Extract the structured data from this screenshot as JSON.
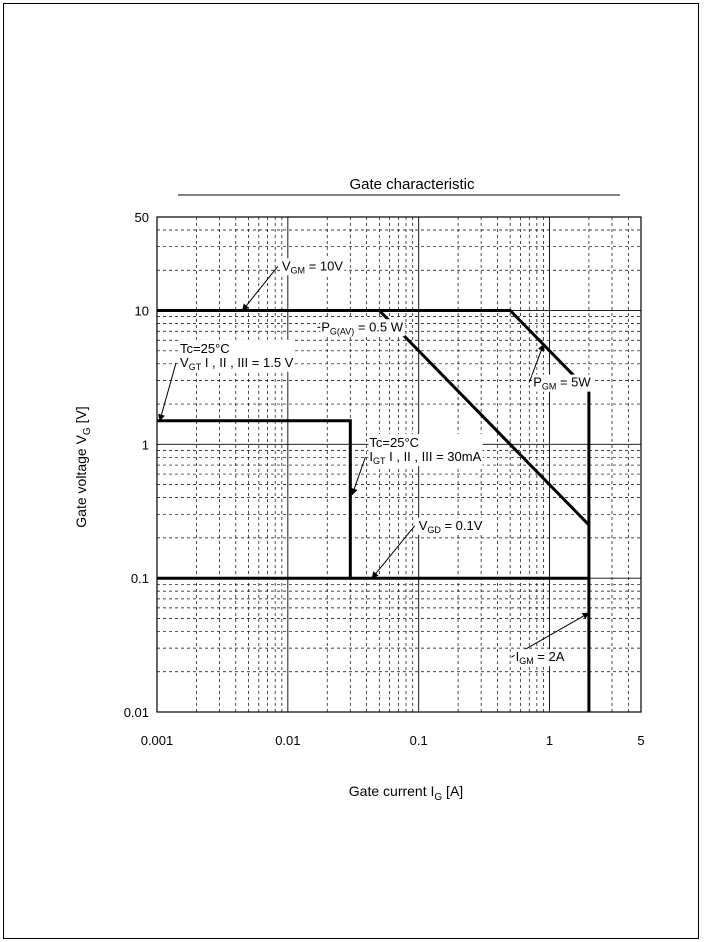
{
  "chart_data": {
    "type": "line",
    "title": "Gate characteristic",
    "xlabel": "Gate current I_G [A]",
    "ylabel": "Gate voltage V_G [V]",
    "x_scale": "log",
    "y_scale": "log",
    "xlim": [
      0.001,
      5
    ],
    "ylim": [
      0.01,
      50
    ],
    "x_ticks": [
      {
        "value": 0.001,
        "label": "0.001"
      },
      {
        "value": 0.01,
        "label": "0.01"
      },
      {
        "value": 0.1,
        "label": "0.1"
      },
      {
        "value": 1,
        "label": "1"
      },
      {
        "value": 5,
        "label": "5"
      }
    ],
    "y_ticks": [
      {
        "value": 0.01,
        "label": "0.01"
      },
      {
        "value": 0.1,
        "label": "0.1"
      },
      {
        "value": 1,
        "label": "1"
      },
      {
        "value": 10,
        "label": "10"
      },
      {
        "value": 50,
        "label": "50"
      }
    ],
    "grid": true,
    "grid_style": "dashed minor, solid major",
    "series": [
      {
        "x": [
          0.001,
          0.5,
          2,
          2
        ],
        "y": [
          10,
          10,
          2.5,
          0.01
        ]
      },
      {
        "x": [
          0.05,
          2
        ],
        "y": [
          10,
          0.25
        ]
      },
      {
        "x": [
          0.001,
          0.03,
          0.03
        ],
        "y": [
          1.5,
          1.5,
          0.1
        ]
      },
      {
        "x": [
          0.001,
          2
        ],
        "y": [
          0.1,
          0.1
        ]
      }
    ],
    "annotations": [
      {
        "main": "V",
        "sub": "GM",
        "rest": " = 10V",
        "at": [
          0.0045,
          10
        ],
        "label_pos": [
          0.009,
          20
        ]
      },
      {
        "main": "P",
        "sub": "G(AV)",
        "rest": " = 0.5 W",
        "at": [
          0.07,
          7
        ],
        "label_pos": [
          0.018,
          7
        ]
      },
      {
        "main": "P",
        "sub": "GM",
        "rest": " = 5W",
        "at": [
          0.9,
          5.6
        ],
        "label_pos": [
          0.75,
          2.7
        ]
      },
      {
        "pre": "Tc=25°C",
        "main": "V",
        "sub": "GT",
        "rest": " I , II , III = 1.5 V",
        "at": [
          0.00105,
          1.5
        ],
        "label_pos": [
          0.0015,
          3.8
        ]
      },
      {
        "pre": "Tc=25°C",
        "main": "I",
        "sub": "GT",
        "rest": " I , II , III = 30mA",
        "at": [
          0.031,
          0.42
        ],
        "label_pos": [
          0.042,
          0.75
        ]
      },
      {
        "main": "V",
        "sub": "GD",
        "rest": " = 0.1V",
        "at": [
          0.044,
          0.1
        ],
        "label_pos": [
          0.1,
          0.23
        ]
      },
      {
        "main": "I",
        "sub": "GM",
        "rest": " = 2A",
        "at": [
          2,
          0.055
        ],
        "label_pos": [
          0.55,
          0.024
        ]
      }
    ]
  }
}
